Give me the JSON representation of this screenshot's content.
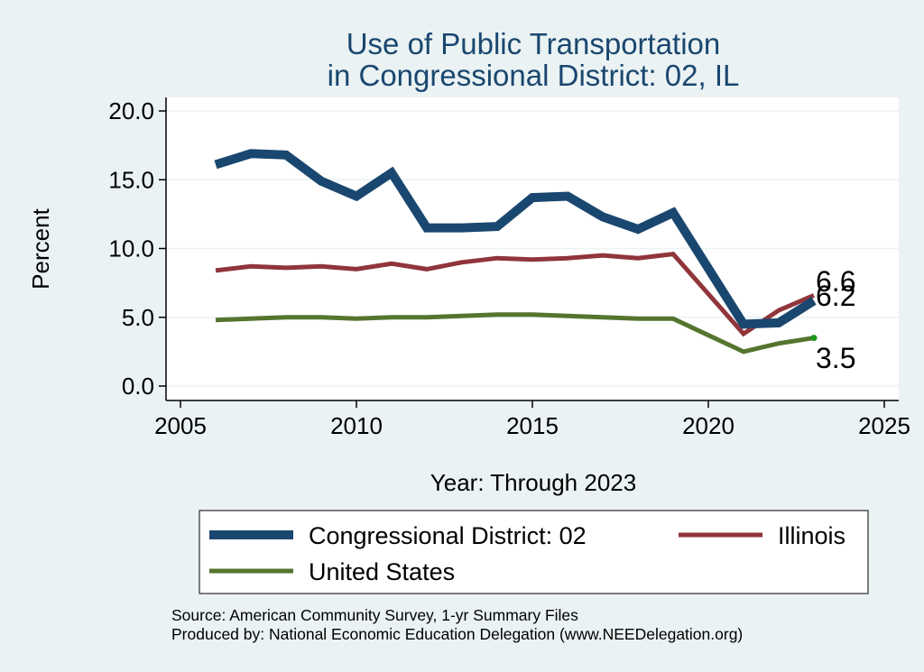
{
  "chart_data": {
    "type": "line",
    "title": [
      "Use of Public Transportation",
      "in Congressional District: 02, IL"
    ],
    "xlabel": "Year: Through 2023",
    "ylabel": "Percent",
    "xlim": [
      2005,
      2025
    ],
    "ylim": [
      0,
      20
    ],
    "x_ticks": [
      "2005",
      "2010",
      "2015",
      "2020",
      "2025"
    ],
    "y_ticks": [
      "0.0",
      "5.0",
      "10.0",
      "15.0",
      "20.0"
    ],
    "grid": true,
    "legend_position": "bottom",
    "x": [
      2006,
      2007,
      2008,
      2009,
      2010,
      2011,
      2012,
      2013,
      2014,
      2015,
      2016,
      2017,
      2018,
      2019,
      2021,
      2022,
      2023
    ],
    "series": [
      {
        "name": "Congressional District: 02",
        "color": "#1a476f",
        "values": [
          16.1,
          16.9,
          16.8,
          14.9,
          13.8,
          15.5,
          11.5,
          11.5,
          11.6,
          13.7,
          13.8,
          12.3,
          11.4,
          12.6,
          4.5,
          4.6,
          6.2
        ],
        "end_label": "6.2"
      },
      {
        "name": "Illinois",
        "color": "#90353b",
        "values": [
          8.4,
          8.7,
          8.6,
          8.7,
          8.5,
          8.9,
          8.5,
          9.0,
          9.3,
          9.2,
          9.3,
          9.5,
          9.3,
          9.6,
          3.8,
          5.5,
          6.6
        ],
        "end_label": "6.6"
      },
      {
        "name": "United States",
        "color": "#55752f",
        "values": [
          4.8,
          4.9,
          5.0,
          5.0,
          4.9,
          5.0,
          5.0,
          5.1,
          5.2,
          5.2,
          5.1,
          5.0,
          4.9,
          4.9,
          2.5,
          3.1,
          3.5
        ],
        "end_label": "3.5"
      }
    ],
    "notes": [
      "Source: American Community Survey, 1-yr Summary Files",
      "Produced by: National Economic Education Delegation (www.NEEDelegation.org)"
    ]
  }
}
